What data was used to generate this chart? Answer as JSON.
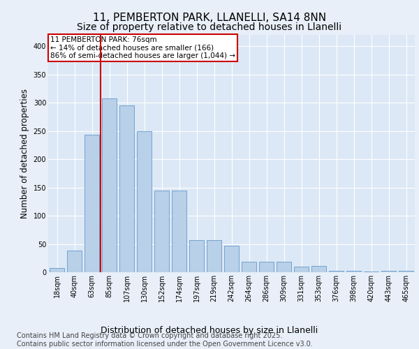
{
  "title_line1": "11, PEMBERTON PARK, LLANELLI, SA14 8NN",
  "title_line2": "Size of property relative to detached houses in Llanelli",
  "xlabel": "Distribution of detached houses by size in Llanelli",
  "ylabel": "Number of detached properties",
  "categories": [
    "18sqm",
    "40sqm",
    "63sqm",
    "85sqm",
    "107sqm",
    "130sqm",
    "152sqm",
    "174sqm",
    "197sqm",
    "219sqm",
    "242sqm",
    "264sqm",
    "286sqm",
    "309sqm",
    "331sqm",
    "353sqm",
    "376sqm",
    "398sqm",
    "420sqm",
    "443sqm",
    "465sqm"
  ],
  "values": [
    8,
    38,
    243,
    307,
    295,
    250,
    144,
    144,
    57,
    57,
    47,
    18,
    18,
    18,
    10,
    11,
    3,
    3,
    1,
    3,
    3
  ],
  "bar_color": "#b8d0e8",
  "bar_edge_color": "#6699cc",
  "vline_color": "#cc0000",
  "vline_index": 2.5,
  "annotation_text": "11 PEMBERTON PARK: 76sqm\n← 14% of detached houses are smaller (166)\n86% of semi-detached houses are larger (1,044) →",
  "annotation_box_color": "#ffffff",
  "annotation_box_edge": "#cc0000",
  "bg_color": "#e8eff8",
  "plot_bg_color": "#dce8f5",
  "footer_text": "Contains HM Land Registry data © Crown copyright and database right 2025.\nContains public sector information licensed under the Open Government Licence v3.0.",
  "ylim": [
    0,
    420
  ],
  "yticks": [
    0,
    50,
    100,
    150,
    200,
    250,
    300,
    350,
    400
  ],
  "grid_color": "#ffffff",
  "title_fontsize": 11,
  "subtitle_fontsize": 10,
  "ylabel_fontsize": 8.5,
  "xlabel_fontsize": 9,
  "tick_fontsize": 7,
  "footer_fontsize": 7,
  "annotation_fontsize": 7.5
}
